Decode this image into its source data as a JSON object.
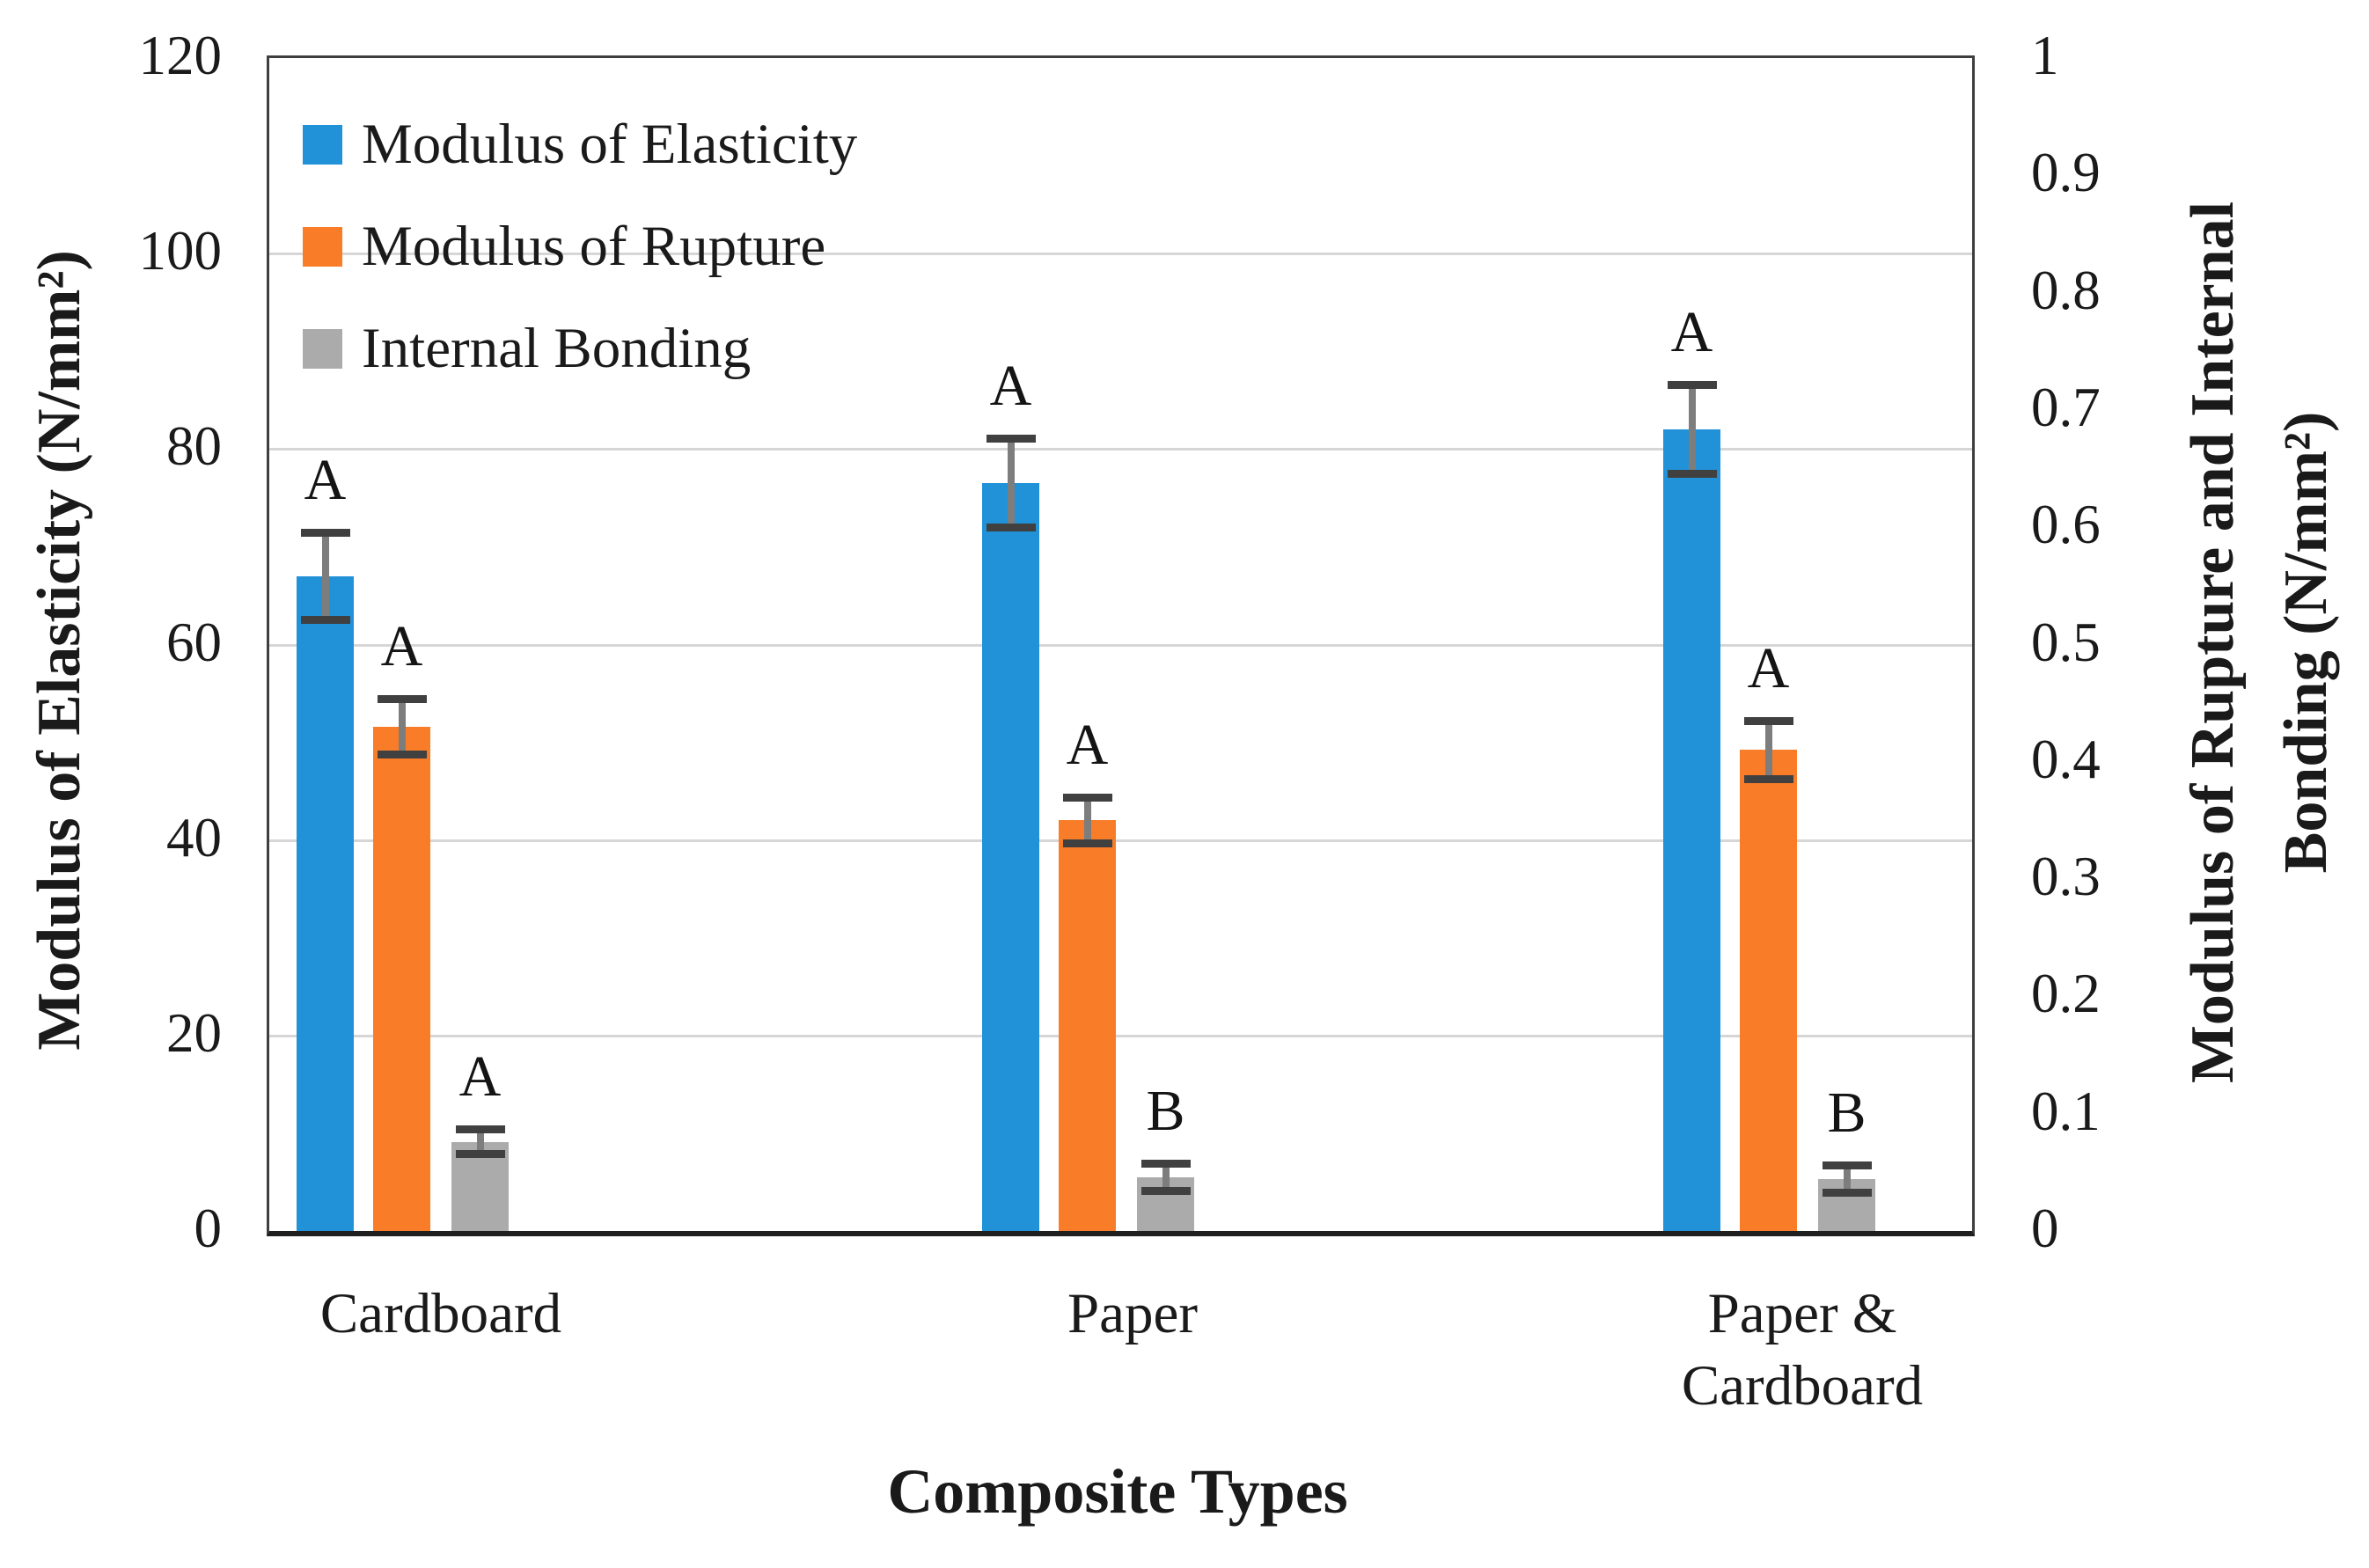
{
  "chart_data": {
    "type": "bar",
    "title": "",
    "xlabel": "Composite Types",
    "ylabel_left": "Modulus of Elasticity (N/mm²)",
    "ylabel_right": "Modulus of Rupture and Internal Bonding (N/mm²)",
    "ylabel_right_lines": [
      "Modulus of Rupture and Internal",
      "Bonding (N/mm²)"
    ],
    "categories": [
      "Cardboard",
      "Paper",
      "Paper & Cardboard"
    ],
    "category_lines": [
      [
        "Cardboard"
      ],
      [
        "Paper"
      ],
      [
        "Paper &",
        "Cardboard"
      ]
    ],
    "left_axis": {
      "min": 0,
      "max": 120,
      "ticks": [
        0,
        20,
        40,
        60,
        80,
        100,
        120
      ],
      "tick_labels": [
        "0",
        "20",
        "40",
        "60",
        "80",
        "100",
        "120"
      ]
    },
    "right_axis": {
      "min": 0,
      "max": 1,
      "ticks": [
        0,
        0.1,
        0.2,
        0.3,
        0.4,
        0.5,
        0.6,
        0.7,
        0.8,
        0.9,
        1
      ],
      "tick_labels": [
        "0",
        "0.1",
        "0.2",
        "0.3",
        "0.4",
        "0.5",
        "0.6",
        "0.7",
        "0.8",
        "0.9",
        "1"
      ]
    },
    "grid": true,
    "legend_position": "top-left-inside",
    "series": [
      {
        "name": "Modulus of Elasticity",
        "axis": "left",
        "color": "#2191d8",
        "values": [
          67,
          76.5,
          82
        ],
        "errors": [
          4.5,
          4.6,
          4.6
        ],
        "sig_letters": [
          "A",
          "A",
          "A"
        ]
      },
      {
        "name": "Modulus of Rupture",
        "axis": "right",
        "color": "#f97d28",
        "values": [
          0.43,
          0.35,
          0.41
        ],
        "errors": [
          0.024,
          0.02,
          0.025
        ],
        "sig_letters": [
          "A",
          "A",
          "A"
        ]
      },
      {
        "name": "Internal Bonding",
        "axis": "right",
        "color": "#ababab",
        "values": [
          0.076,
          0.046,
          0.044
        ],
        "errors": [
          0.011,
          0.012,
          0.012
        ],
        "sig_letters": [
          "A",
          "B",
          "B"
        ]
      }
    ]
  }
}
